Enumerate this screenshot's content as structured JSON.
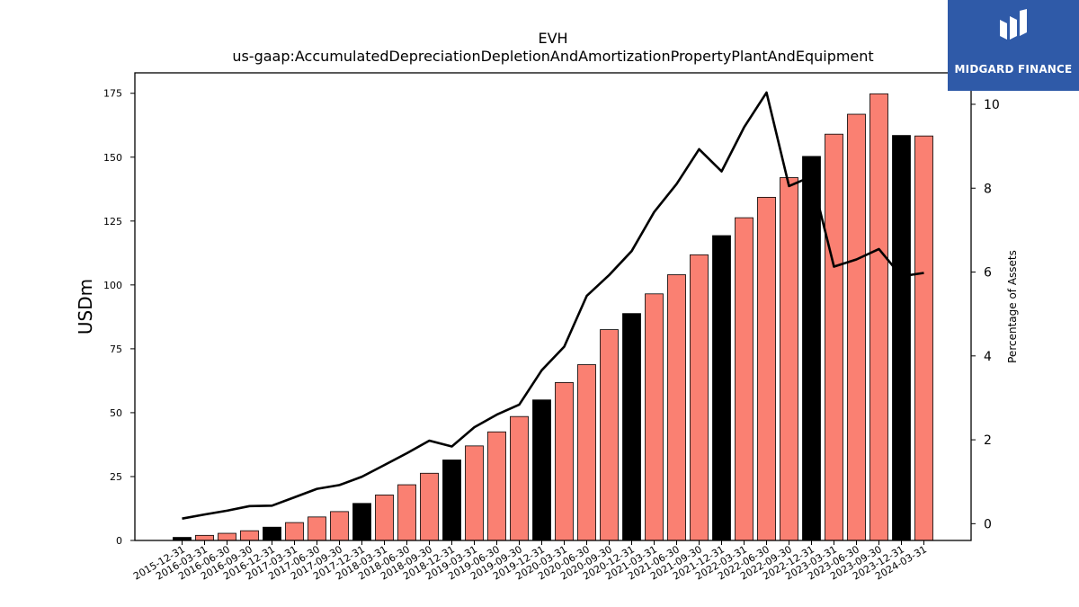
{
  "chart_data": {
    "type": "bar",
    "title": "EVH",
    "subtitle": "us-gaap:AccumulatedDepreciationDepletionAndAmortizationPropertyPlantAndEquipment",
    "ylabel": "USDm",
    "y2label": "Percentage of Assets",
    "ylim": [
      0,
      183
    ],
    "y2lim": [
      -0.4,
      10.75
    ],
    "yticks": [
      0,
      25,
      50,
      75,
      100,
      125,
      150,
      175
    ],
    "y2ticks": [
      0,
      2,
      4,
      6,
      8,
      10
    ],
    "categories": [
      "2015-12-31",
      "2016-03-31",
      "2016-06-30",
      "2016-09-30",
      "2016-12-31",
      "2017-03-31",
      "2017-06-30",
      "2017-09-30",
      "2017-12-31",
      "2018-03-31",
      "2018-06-30",
      "2018-09-30",
      "2018-12-31",
      "2019-03-31",
      "2019-06-30",
      "2019-09-30",
      "2019-12-31",
      "2020-03-31",
      "2020-06-30",
      "2020-09-30",
      "2020-12-31",
      "2021-03-31",
      "2021-06-30",
      "2021-09-30",
      "2021-12-31",
      "2022-03-31",
      "2022-06-30",
      "2022-09-30",
      "2022-12-31",
      "2023-03-31",
      "2023-06-30",
      "2023-09-30",
      "2023-12-31",
      "2024-03-31"
    ],
    "series": [
      {
        "type": "bar",
        "values": [
          1.2,
          2.0,
          2.8,
          3.8,
          5.2,
          7.0,
          9.2,
          11.3,
          14.5,
          17.8,
          21.8,
          26.3,
          31.5,
          37.0,
          42.5,
          48.5,
          55.0,
          61.8,
          68.8,
          82.5,
          88.8,
          96.5,
          104.0,
          111.8,
          119.3,
          126.3,
          134.3,
          142.0,
          150.3,
          159.0,
          166.8,
          174.8,
          158.5,
          158.3
        ],
        "colors": [
          "#000000",
          "#fa8072",
          "#fa8072",
          "#fa8072",
          "#000000",
          "#fa8072",
          "#fa8072",
          "#fa8072",
          "#000000",
          "#fa8072",
          "#fa8072",
          "#fa8072",
          "#000000",
          "#fa8072",
          "#fa8072",
          "#fa8072",
          "#000000",
          "#fa8072",
          "#fa8072",
          "#fa8072",
          "#000000",
          "#fa8072",
          "#fa8072",
          "#fa8072",
          "#000000",
          "#fa8072",
          "#fa8072",
          "#fa8072",
          "#000000",
          "#fa8072",
          "#fa8072",
          "#fa8072",
          "#000000",
          "#fa8072"
        ]
      },
      {
        "type": "line",
        "axis": "right",
        "values": [
          0.12,
          0.22,
          0.31,
          0.42,
          0.43,
          0.63,
          0.83,
          0.92,
          1.12,
          1.4,
          1.68,
          1.98,
          1.84,
          2.3,
          2.6,
          2.84,
          3.66,
          4.22,
          5.43,
          5.93,
          6.5,
          7.43,
          8.1,
          8.93,
          8.4,
          9.45,
          10.28,
          8.05,
          8.28,
          6.13,
          6.3,
          6.55,
          5.9,
          5.98
        ],
        "color": "#000000"
      }
    ],
    "grid": false,
    "legend": "none"
  },
  "logo": {
    "text": "MIDGARD FINANCE",
    "color": "#2f5aa8"
  }
}
